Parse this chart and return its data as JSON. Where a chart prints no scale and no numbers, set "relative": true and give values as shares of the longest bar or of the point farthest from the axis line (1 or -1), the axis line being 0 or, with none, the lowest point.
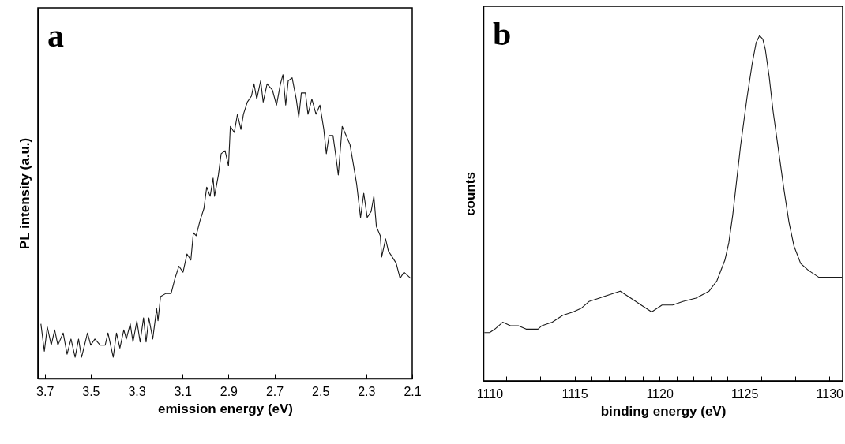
{
  "chart_data": [
    {
      "type": "line",
      "title": "a",
      "xlabel": "emission energy (eV)",
      "ylabel": "PL intensity (a.u.)",
      "relative": true,
      "tick_labels": "x",
      "xlim": [
        3.73,
        2.1
      ],
      "xticks": [
        3.7,
        3.5,
        3.3,
        3.1,
        2.9,
        2.7,
        2.5,
        2.3,
        2.1
      ],
      "x": [
        3.717,
        3.702,
        3.689,
        3.672,
        3.657,
        3.643,
        3.62,
        3.603,
        3.586,
        3.568,
        3.553,
        3.54,
        3.514,
        3.5,
        3.482,
        3.459,
        3.437,
        3.425,
        3.402,
        3.388,
        3.373,
        3.356,
        3.345,
        3.328,
        3.316,
        3.299,
        3.285,
        3.27,
        3.259,
        3.247,
        3.23,
        3.213,
        3.207,
        3.196,
        3.173,
        3.15,
        3.133,
        3.116,
        3.098,
        3.081,
        3.064,
        3.053,
        3.041,
        3.024,
        3.007,
        2.995,
        2.98,
        2.967,
        2.961,
        2.944,
        2.932,
        2.915,
        2.9,
        2.892,
        2.875,
        2.861,
        2.846,
        2.835,
        2.818,
        2.8,
        2.789,
        2.777,
        2.76,
        2.749,
        2.732,
        2.709,
        2.691,
        2.674,
        2.663,
        2.651,
        2.64,
        2.623,
        2.605,
        2.594,
        2.583,
        2.565,
        2.554,
        2.537,
        2.519,
        2.502,
        2.485,
        2.474,
        2.462,
        2.445,
        2.434,
        2.422,
        2.405,
        2.388,
        2.371,
        2.353,
        2.342,
        2.325,
        2.311,
        2.296,
        2.279,
        2.267,
        2.256,
        2.239,
        2.233,
        2.216,
        2.204,
        2.187,
        2.17,
        2.153,
        2.136,
        2.107
      ],
      "series": [
        {
          "color": "#1a1a1a",
          "values": [
            0.18,
            0.09,
            0.17,
            0.11,
            0.16,
            0.11,
            0.15,
            0.08,
            0.13,
            0.07,
            0.13,
            0.07,
            0.15,
            0.11,
            0.13,
            0.11,
            0.11,
            0.15,
            0.07,
            0.15,
            0.1,
            0.16,
            0.13,
            0.18,
            0.12,
            0.19,
            0.12,
            0.2,
            0.12,
            0.2,
            0.13,
            0.23,
            0.19,
            0.27,
            0.28,
            0.28,
            0.33,
            0.37,
            0.35,
            0.41,
            0.39,
            0.48,
            0.47,
            0.52,
            0.56,
            0.63,
            0.6,
            0.66,
            0.6,
            0.67,
            0.74,
            0.75,
            0.7,
            0.83,
            0.81,
            0.87,
            0.82,
            0.87,
            0.91,
            0.93,
            0.97,
            0.92,
            0.98,
            0.91,
            0.97,
            0.95,
            0.9,
            0.97,
            1.0,
            0.9,
            0.98,
            0.99,
            0.92,
            0.86,
            0.94,
            0.94,
            0.87,
            0.92,
            0.87,
            0.9,
            0.82,
            0.74,
            0.8,
            0.8,
            0.74,
            0.67,
            0.83,
            0.8,
            0.77,
            0.69,
            0.64,
            0.53,
            0.61,
            0.53,
            0.55,
            0.6,
            0.5,
            0.47,
            0.4,
            0.46,
            0.42,
            0.4,
            0.38,
            0.33,
            0.35,
            0.33
          ]
        }
      ]
    },
    {
      "type": "line",
      "title": "b",
      "xlabel": "binding energy (eV)",
      "ylabel": "counts",
      "relative": true,
      "tick_labels": "x",
      "xlim": [
        1109.63,
        1130.78
      ],
      "xticks": [
        1110,
        {
          "value": 1111,
          "label": null
        },
        {
          "value": 1112,
          "label": null
        },
        {
          "value": 1113,
          "label": null
        },
        {
          "value": 1114,
          "label": null
        },
        1115,
        {
          "value": 1116,
          "label": null
        },
        {
          "value": 1117,
          "label": null
        },
        {
          "value": 1118,
          "label": null
        },
        {
          "value": 1119,
          "label": null
        },
        1120,
        {
          "value": 1121,
          "label": null
        },
        {
          "value": 1122,
          "label": null
        },
        {
          "value": 1123,
          "label": null
        },
        {
          "value": 1124,
          "label": null
        },
        1125,
        {
          "value": 1126,
          "label": null
        },
        {
          "value": 1127,
          "label": null
        },
        {
          "value": 1128,
          "label": null
        },
        {
          "value": 1129,
          "label": null
        },
        1130
      ],
      "x": [
        1109.69,
        1110.0,
        1110.31,
        1110.77,
        1111.23,
        1111.69,
        1112.15,
        1112.85,
        1113.08,
        1113.69,
        1114.31,
        1114.92,
        1115.38,
        1115.85,
        1116.46,
        1117.08,
        1117.69,
        1118.31,
        1118.92,
        1119.54,
        1120.15,
        1120.77,
        1121.38,
        1122.15,
        1122.92,
        1123.38,
        1123.85,
        1124.08,
        1124.31,
        1124.77,
        1125.15,
        1125.46,
        1125.69,
        1125.89,
        1126.08,
        1126.23,
        1126.46,
        1126.69,
        1127.0,
        1127.31,
        1127.62,
        1127.92,
        1128.31,
        1128.77,
        1129.38,
        1130.0,
        1130.74
      ],
      "series": [
        {
          "color": "#1a1a1a",
          "values": [
            0.14,
            0.14,
            0.15,
            0.17,
            0.16,
            0.16,
            0.15,
            0.15,
            0.16,
            0.17,
            0.19,
            0.2,
            0.21,
            0.23,
            0.24,
            0.25,
            0.26,
            0.24,
            0.22,
            0.2,
            0.22,
            0.22,
            0.23,
            0.24,
            0.26,
            0.29,
            0.35,
            0.4,
            0.48,
            0.68,
            0.82,
            0.92,
            0.98,
            1.0,
            0.99,
            0.96,
            0.88,
            0.78,
            0.67,
            0.56,
            0.46,
            0.39,
            0.34,
            0.32,
            0.3,
            0.3,
            0.3
          ]
        }
      ]
    }
  ]
}
